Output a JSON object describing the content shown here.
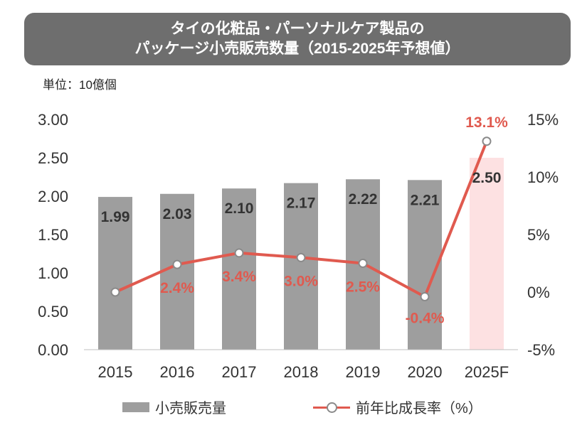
{
  "title": {
    "line1": "タイの化粧品・パーソナルケア製品の",
    "line2": "パッケージ小売販売数量（2015-2025年予想値）"
  },
  "unit_label": "単位：10億個",
  "colors": {
    "bar": "#9e9e9e",
    "bar_forecast": "#fde1e2",
    "line": "#e05a4f",
    "marker_stroke": "#8a8a8a",
    "title_bg": "#6e6e6e"
  },
  "chart_data": {
    "type": "bar+line",
    "categories": [
      "2015",
      "2016",
      "2017",
      "2018",
      "2019",
      "2020",
      "2025F"
    ],
    "series": [
      {
        "name": "小売販売量",
        "type": "bar",
        "axis": "left",
        "values": [
          1.99,
          2.03,
          2.1,
          2.17,
          2.22,
          2.21,
          2.5
        ],
        "labels": [
          "1.99",
          "2.03",
          "2.10",
          "2.17",
          "2.22",
          "2.21",
          "2.50"
        ],
        "highlight_last": true
      },
      {
        "name": "前年比成長率（%）",
        "type": "line",
        "axis": "right",
        "values": [
          0.0,
          2.4,
          3.4,
          3.0,
          2.5,
          -0.4,
          13.1
        ],
        "labels": [
          "",
          "2.4%",
          "3.4%",
          "3.0%",
          "2.5%",
          "-0.4%",
          "13.1%"
        ]
      }
    ],
    "left_axis": {
      "ylim": [
        0,
        3
      ],
      "ticks": [
        "0.00",
        "0.50",
        "1.00",
        "1.50",
        "2.00",
        "2.50",
        "3.00"
      ]
    },
    "right_axis": {
      "ylim": [
        -5,
        15
      ],
      "ticks": [
        "-5%",
        "0%",
        "5%",
        "10%",
        "15%"
      ]
    },
    "grid": false,
    "legend_position": "bottom"
  }
}
